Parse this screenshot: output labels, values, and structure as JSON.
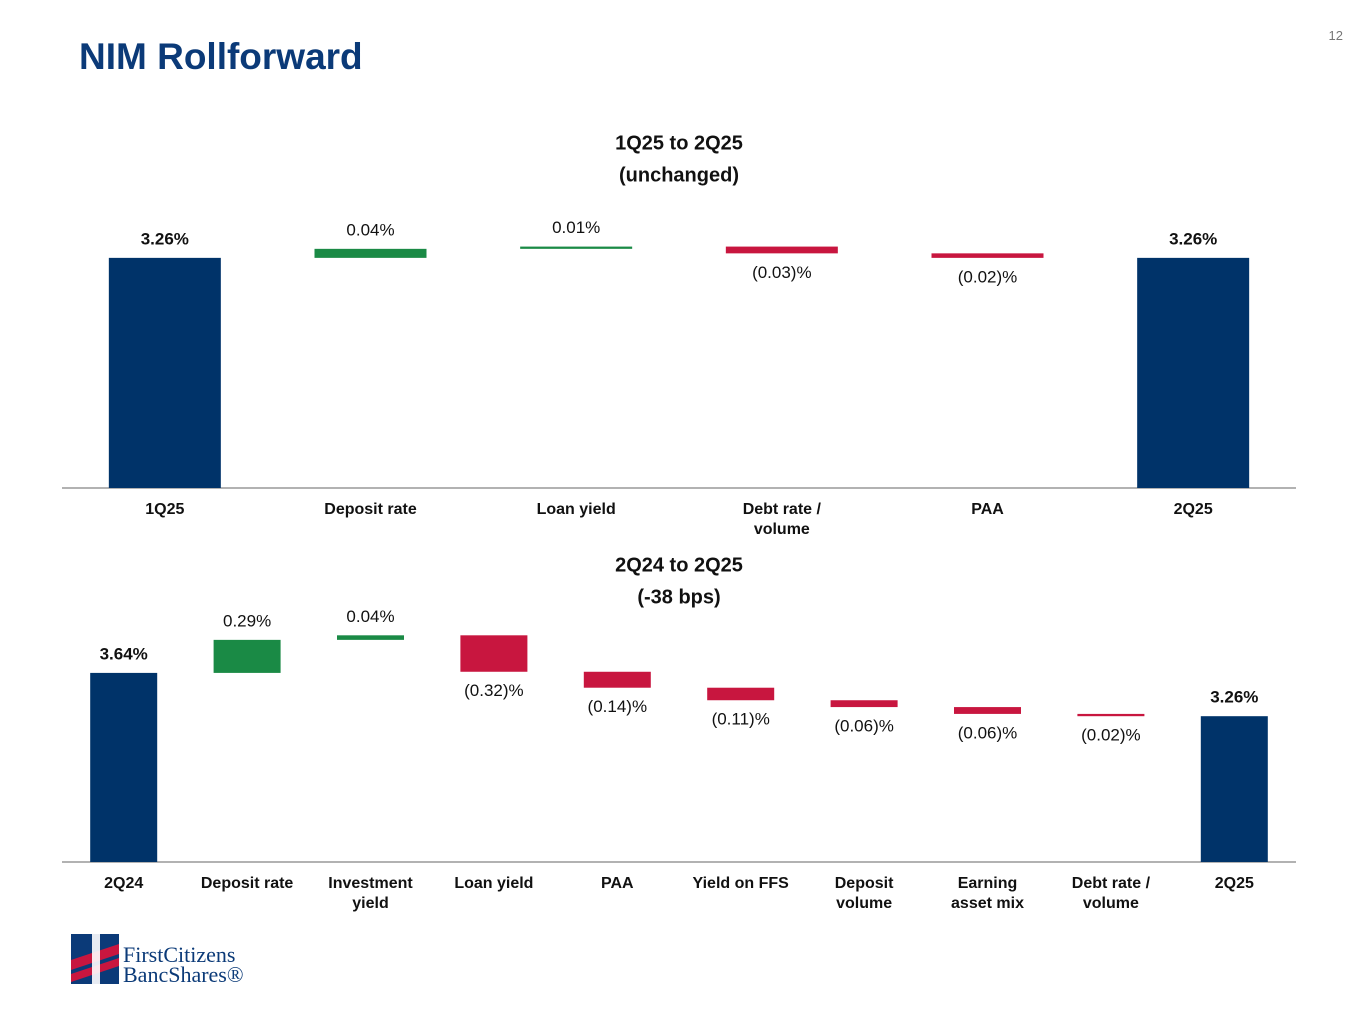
{
  "slide": {
    "title": "NIM Rollforward",
    "page_number": "12"
  },
  "logo": {
    "line1": "FirstCitizens",
    "line2": "BancShares®"
  },
  "chart_data": [
    {
      "type": "waterfall",
      "title": "1Q25 to 2Q25",
      "subtitle": "(unchanged)",
      "categories": [
        "1Q25",
        "Deposit rate",
        "Loan yield",
        "Debt rate / volume",
        "PAA",
        "2Q25"
      ],
      "values": [
        3.26,
        0.04,
        0.01,
        -0.03,
        -0.02,
        3.26
      ],
      "value_labels": [
        "3.26%",
        "0.04%",
        "0.01%",
        "(0.03)%",
        "(0.02)%",
        "3.26%"
      ],
      "measures": [
        "total",
        "relative",
        "relative",
        "relative",
        "relative",
        "total"
      ],
      "colors": {
        "total": "#003369",
        "increase": "#1a8a45",
        "decrease": "#c8163f"
      },
      "ylim": [
        2.24,
        3.45
      ]
    },
    {
      "type": "waterfall",
      "title": "2Q24 to 2Q25",
      "subtitle": "(-38 bps)",
      "categories": [
        "2Q24",
        "Deposit rate",
        "Investment\nyield",
        "Loan yield",
        "PAA",
        "Yield on FFS",
        "Deposit\nvolume",
        "Earning\nasset mix",
        "Debt rate /\nvolume",
        "2Q25"
      ],
      "values": [
        3.64,
        0.29,
        0.04,
        -0.32,
        -0.14,
        -0.11,
        -0.06,
        -0.06,
        -0.02,
        3.26
      ],
      "value_labels": [
        "3.64%",
        "0.29%",
        "0.04%",
        "(0.32)%",
        "(0.14)%",
        "(0.11)%",
        "(0.06)%",
        "(0.06)%",
        "(0.02)%",
        "3.26%"
      ],
      "measures": [
        "total",
        "relative",
        "relative",
        "relative",
        "relative",
        "relative",
        "relative",
        "relative",
        "relative",
        "total"
      ],
      "colors": {
        "total": "#003369",
        "increase": "#1a8a45",
        "decrease": "#c8163f"
      },
      "ylim": [
        1.98,
        4.28
      ]
    }
  ]
}
